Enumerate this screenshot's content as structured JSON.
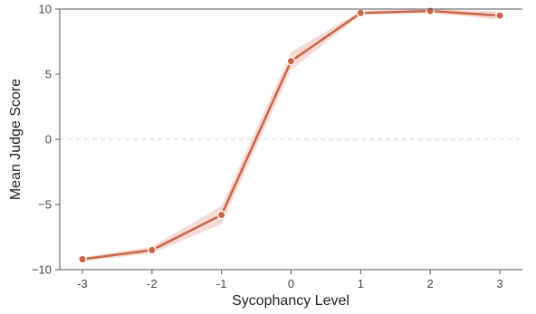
{
  "chart_data": {
    "type": "line",
    "title": "",
    "xlabel": "Sycophancy Level",
    "ylabel": "Mean Judge Score",
    "x": [
      -3,
      -2,
      -1,
      0,
      1,
      2,
      3
    ],
    "series": [
      {
        "values": [
          -9.2,
          -8.5,
          -5.8,
          6.0,
          9.7,
          9.85,
          9.5
        ],
        "ci_lower": [
          -9.35,
          -8.75,
          -6.5,
          5.3,
          9.55,
          9.7,
          9.2
        ],
        "ci_upper": [
          -9.05,
          -8.25,
          -5.1,
          6.7,
          9.85,
          10.0,
          9.8
        ]
      }
    ],
    "xlim": [
      -3,
      3
    ],
    "ylim": [
      -10,
      10
    ],
    "xticks": [
      "-3",
      "-2",
      "-1",
      "0",
      "1",
      "2",
      "3"
    ],
    "yticks": [
      "−10",
      "−5",
      "0",
      "5",
      "10"
    ],
    "reference_line_y": 0,
    "colors": {
      "line": "#c8644a",
      "band": "#f2cfc4",
      "marker_edge": "#ffffff",
      "axis": "#555555",
      "zero_line": "#cfcfcf"
    },
    "grid": false,
    "legend": "none"
  }
}
